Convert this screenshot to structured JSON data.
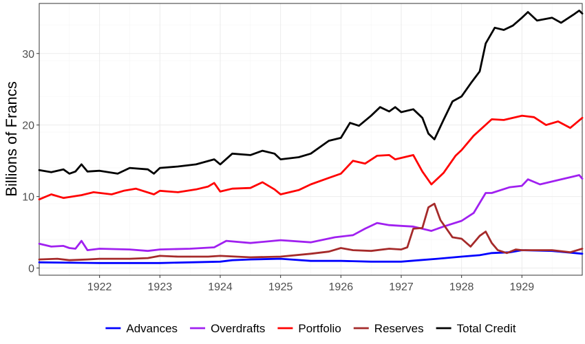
{
  "chart_data": {
    "type": "line",
    "title": "",
    "xlabel": "",
    "ylabel": "Billions of Francs",
    "xlim": [
      1921.0,
      1930.0
    ],
    "ylim": [
      -1,
      37
    ],
    "x_ticks": [
      1922,
      1923,
      1924,
      1925,
      1926,
      1927,
      1928,
      1929
    ],
    "y_ticks": [
      0,
      10,
      20,
      30
    ],
    "grid": true,
    "legend_position": "bottom",
    "series": [
      {
        "name": "Advances",
        "color": "#0000ff",
        "points": [
          [
            1921.0,
            0.8
          ],
          [
            1922.0,
            0.7
          ],
          [
            1923.0,
            0.7
          ],
          [
            1923.5,
            0.8
          ],
          [
            1924.0,
            0.9
          ],
          [
            1924.2,
            1.1
          ],
          [
            1924.5,
            1.2
          ],
          [
            1925.0,
            1.3
          ],
          [
            1925.5,
            1.0
          ],
          [
            1926.0,
            1.0
          ],
          [
            1926.5,
            0.9
          ],
          [
            1927.0,
            0.9
          ],
          [
            1927.3,
            1.1
          ],
          [
            1927.6,
            1.3
          ],
          [
            1928.0,
            1.6
          ],
          [
            1928.3,
            1.8
          ],
          [
            1928.5,
            2.1
          ],
          [
            1928.8,
            2.2
          ],
          [
            1929.0,
            2.5
          ],
          [
            1929.5,
            2.4
          ],
          [
            1930.0,
            2.0
          ]
        ]
      },
      {
        "name": "Overdrafts",
        "color": "#a020f0",
        "points": [
          [
            1921.0,
            3.4
          ],
          [
            1921.2,
            3.0
          ],
          [
            1921.4,
            3.1
          ],
          [
            1921.5,
            2.8
          ],
          [
            1921.6,
            2.7
          ],
          [
            1921.7,
            3.8
          ],
          [
            1921.8,
            2.5
          ],
          [
            1922.0,
            2.7
          ],
          [
            1922.5,
            2.6
          ],
          [
            1922.8,
            2.4
          ],
          [
            1923.0,
            2.6
          ],
          [
            1923.5,
            2.7
          ],
          [
            1923.9,
            2.9
          ],
          [
            1924.1,
            3.8
          ],
          [
            1924.5,
            3.5
          ],
          [
            1925.0,
            3.9
          ],
          [
            1925.5,
            3.6
          ],
          [
            1925.9,
            4.3
          ],
          [
            1926.2,
            4.6
          ],
          [
            1926.4,
            5.5
          ],
          [
            1926.6,
            6.3
          ],
          [
            1926.8,
            6.0
          ],
          [
            1927.0,
            5.9
          ],
          [
            1927.2,
            5.8
          ],
          [
            1927.5,
            5.2
          ],
          [
            1927.7,
            5.8
          ],
          [
            1928.0,
            6.6
          ],
          [
            1928.2,
            7.7
          ],
          [
            1928.4,
            10.5
          ],
          [
            1928.5,
            10.5
          ],
          [
            1928.8,
            11.3
          ],
          [
            1929.0,
            11.5
          ],
          [
            1929.1,
            12.4
          ],
          [
            1929.3,
            11.7
          ],
          [
            1929.6,
            12.3
          ],
          [
            1929.85,
            12.8
          ],
          [
            1929.95,
            13.0
          ],
          [
            1930.0,
            12.5
          ]
        ]
      },
      {
        "name": "Portfolio",
        "color": "#ff0000",
        "points": [
          [
            1921.0,
            9.6
          ],
          [
            1921.2,
            10.3
          ],
          [
            1921.4,
            9.8
          ],
          [
            1921.7,
            10.2
          ],
          [
            1921.9,
            10.6
          ],
          [
            1922.2,
            10.3
          ],
          [
            1922.4,
            10.8
          ],
          [
            1922.6,
            11.1
          ],
          [
            1922.9,
            10.3
          ],
          [
            1923.0,
            10.8
          ],
          [
            1923.3,
            10.6
          ],
          [
            1923.6,
            11.0
          ],
          [
            1923.8,
            11.4
          ],
          [
            1923.9,
            11.9
          ],
          [
            1924.0,
            10.7
          ],
          [
            1924.2,
            11.1
          ],
          [
            1924.5,
            11.2
          ],
          [
            1924.7,
            12.0
          ],
          [
            1924.9,
            11.0
          ],
          [
            1925.0,
            10.3
          ],
          [
            1925.3,
            10.9
          ],
          [
            1925.5,
            11.7
          ],
          [
            1925.8,
            12.6
          ],
          [
            1926.0,
            13.2
          ],
          [
            1926.2,
            15.0
          ],
          [
            1926.4,
            14.6
          ],
          [
            1926.6,
            15.7
          ],
          [
            1926.8,
            15.8
          ],
          [
            1926.9,
            15.2
          ],
          [
            1927.2,
            15.8
          ],
          [
            1927.35,
            13.5
          ],
          [
            1927.5,
            11.7
          ],
          [
            1927.7,
            13.3
          ],
          [
            1927.9,
            15.7
          ],
          [
            1928.0,
            16.5
          ],
          [
            1928.2,
            18.5
          ],
          [
            1928.5,
            20.8
          ],
          [
            1928.7,
            20.7
          ],
          [
            1929.0,
            21.3
          ],
          [
            1929.2,
            21.1
          ],
          [
            1929.4,
            20.0
          ],
          [
            1929.6,
            20.5
          ],
          [
            1929.8,
            19.6
          ],
          [
            1930.0,
            21.0
          ]
        ]
      },
      {
        "name": "Reserves",
        "color": "#a52a2a",
        "points": [
          [
            1921.0,
            1.2
          ],
          [
            1921.3,
            1.3
          ],
          [
            1921.5,
            1.1
          ],
          [
            1921.8,
            1.2
          ],
          [
            1922.0,
            1.3
          ],
          [
            1922.5,
            1.3
          ],
          [
            1922.8,
            1.4
          ],
          [
            1923.0,
            1.7
          ],
          [
            1923.3,
            1.6
          ],
          [
            1923.8,
            1.6
          ],
          [
            1924.0,
            1.7
          ],
          [
            1924.5,
            1.5
          ],
          [
            1925.0,
            1.6
          ],
          [
            1925.5,
            2.0
          ],
          [
            1925.8,
            2.3
          ],
          [
            1926.0,
            2.8
          ],
          [
            1926.2,
            2.5
          ],
          [
            1926.5,
            2.4
          ],
          [
            1926.8,
            2.7
          ],
          [
            1927.0,
            2.6
          ],
          [
            1927.1,
            2.9
          ],
          [
            1927.2,
            5.5
          ],
          [
            1927.35,
            5.6
          ],
          [
            1927.45,
            8.5
          ],
          [
            1927.55,
            9.0
          ],
          [
            1927.65,
            6.7
          ],
          [
            1927.75,
            5.5
          ],
          [
            1927.85,
            4.3
          ],
          [
            1928.0,
            4.1
          ],
          [
            1928.15,
            3.0
          ],
          [
            1928.3,
            4.5
          ],
          [
            1928.4,
            5.1
          ],
          [
            1928.5,
            3.5
          ],
          [
            1928.6,
            2.5
          ],
          [
            1928.75,
            2.1
          ],
          [
            1928.9,
            2.6
          ],
          [
            1929.0,
            2.5
          ],
          [
            1929.5,
            2.5
          ],
          [
            1929.8,
            2.2
          ],
          [
            1930.0,
            2.7
          ]
        ]
      },
      {
        "name": "Total Credit",
        "color": "#000000",
        "points": [
          [
            1921.0,
            13.7
          ],
          [
            1921.2,
            13.4
          ],
          [
            1921.4,
            13.8
          ],
          [
            1921.5,
            13.2
          ],
          [
            1921.6,
            13.5
          ],
          [
            1921.7,
            14.5
          ],
          [
            1921.8,
            13.5
          ],
          [
            1922.0,
            13.6
          ],
          [
            1922.3,
            13.2
          ],
          [
            1922.5,
            14.0
          ],
          [
            1922.8,
            13.8
          ],
          [
            1922.9,
            13.2
          ],
          [
            1923.0,
            14.0
          ],
          [
            1923.3,
            14.2
          ],
          [
            1923.6,
            14.5
          ],
          [
            1923.9,
            15.2
          ],
          [
            1924.0,
            14.5
          ],
          [
            1924.2,
            16.0
          ],
          [
            1924.5,
            15.8
          ],
          [
            1924.7,
            16.4
          ],
          [
            1924.9,
            16.0
          ],
          [
            1925.0,
            15.2
          ],
          [
            1925.3,
            15.5
          ],
          [
            1925.5,
            16.0
          ],
          [
            1925.8,
            17.8
          ],
          [
            1926.0,
            18.2
          ],
          [
            1926.15,
            20.3
          ],
          [
            1926.3,
            19.9
          ],
          [
            1926.5,
            21.3
          ],
          [
            1926.65,
            22.5
          ],
          [
            1926.8,
            21.9
          ],
          [
            1926.9,
            22.5
          ],
          [
            1927.0,
            21.8
          ],
          [
            1927.2,
            22.2
          ],
          [
            1927.35,
            21.0
          ],
          [
            1927.45,
            18.8
          ],
          [
            1927.55,
            18.0
          ],
          [
            1927.7,
            20.7
          ],
          [
            1927.85,
            23.3
          ],
          [
            1928.0,
            24.0
          ],
          [
            1928.15,
            25.8
          ],
          [
            1928.3,
            27.5
          ],
          [
            1928.4,
            31.4
          ],
          [
            1928.55,
            33.6
          ],
          [
            1928.7,
            33.3
          ],
          [
            1928.85,
            33.9
          ],
          [
            1929.0,
            35.0
          ],
          [
            1929.1,
            35.8
          ],
          [
            1929.25,
            34.6
          ],
          [
            1929.5,
            35.0
          ],
          [
            1929.65,
            34.3
          ],
          [
            1929.85,
            35.4
          ],
          [
            1929.95,
            36.0
          ],
          [
            1930.0,
            35.6
          ]
        ]
      }
    ]
  }
}
